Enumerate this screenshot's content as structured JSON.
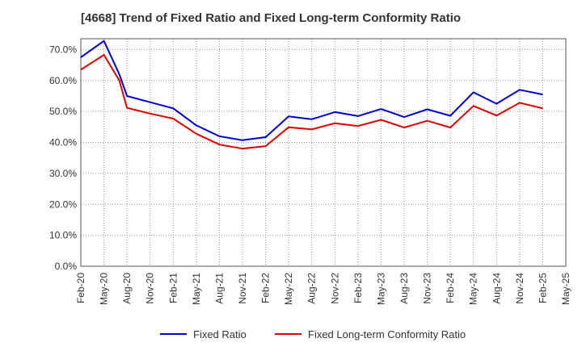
{
  "chart_data": {
    "type": "line",
    "title": "[4668]  Trend of Fixed Ratio and Fixed Long-term Conformity Ratio",
    "xlabel": "",
    "ylabel": "",
    "x_ticks": [
      "Feb-20",
      "May-20",
      "Aug-20",
      "Nov-20",
      "Feb-21",
      "May-21",
      "Aug-21",
      "Nov-21",
      "Feb-22",
      "May-22",
      "Aug-22",
      "Nov-22",
      "Feb-23",
      "May-23",
      "Aug-23",
      "Nov-23",
      "Feb-24",
      "May-24",
      "Aug-24",
      "Nov-24",
      "Feb-25",
      "May-25"
    ],
    "y_ticks": [
      "0.0%",
      "10.0%",
      "20.0%",
      "30.0%",
      "40.0%",
      "50.0%",
      "60.0%",
      "70.0%"
    ],
    "ylim": [
      0,
      70
    ],
    "grid": true,
    "legend_position": "bottom",
    "series": [
      {
        "name": "Fixed Ratio",
        "color": "#0000cc",
        "points": [
          [
            "Feb-20",
            67.5
          ],
          [
            "May-20",
            72.8
          ],
          [
            "Jul-20",
            62.0
          ],
          [
            "Aug-20",
            55.0
          ],
          [
            "Nov-20",
            53.0
          ],
          [
            "Feb-21",
            51.0
          ],
          [
            "May-21",
            45.5
          ],
          [
            "Aug-21",
            42.0
          ],
          [
            "Nov-21",
            40.7
          ],
          [
            "Feb-22",
            41.7
          ],
          [
            "May-22",
            48.4
          ],
          [
            "Aug-22",
            47.5
          ],
          [
            "Nov-22",
            49.8
          ],
          [
            "Feb-23",
            48.5
          ],
          [
            "May-23",
            50.8
          ],
          [
            "Aug-23",
            48.2
          ],
          [
            "Nov-23",
            50.7
          ],
          [
            "Feb-24",
            48.6
          ],
          [
            "May-24",
            56.2
          ],
          [
            "Aug-24",
            52.5
          ],
          [
            "Nov-24",
            57.0
          ],
          [
            "Feb-25",
            55.5
          ]
        ]
      },
      {
        "name": "Fixed Long-term Conformity Ratio",
        "color": "#dd0000",
        "points": [
          [
            "Feb-20",
            63.5
          ],
          [
            "May-20",
            68.3
          ],
          [
            "Jul-20",
            60.0
          ],
          [
            "Aug-20",
            51.2
          ],
          [
            "Nov-20",
            49.3
          ],
          [
            "Feb-21",
            47.7
          ],
          [
            "May-21",
            42.8
          ],
          [
            "Aug-21",
            39.3
          ],
          [
            "Nov-21",
            38.0
          ],
          [
            "Feb-22",
            38.8
          ],
          [
            "May-22",
            44.9
          ],
          [
            "Aug-22",
            44.2
          ],
          [
            "Nov-22",
            46.2
          ],
          [
            "Feb-23",
            45.3
          ],
          [
            "May-23",
            47.3
          ],
          [
            "Aug-23",
            44.8
          ],
          [
            "Nov-23",
            47.0
          ],
          [
            "Feb-24",
            44.8
          ],
          [
            "May-24",
            51.8
          ],
          [
            "Aug-24",
            48.7
          ],
          [
            "Nov-24",
            52.8
          ],
          [
            "Feb-25",
            51.0
          ]
        ]
      }
    ]
  }
}
